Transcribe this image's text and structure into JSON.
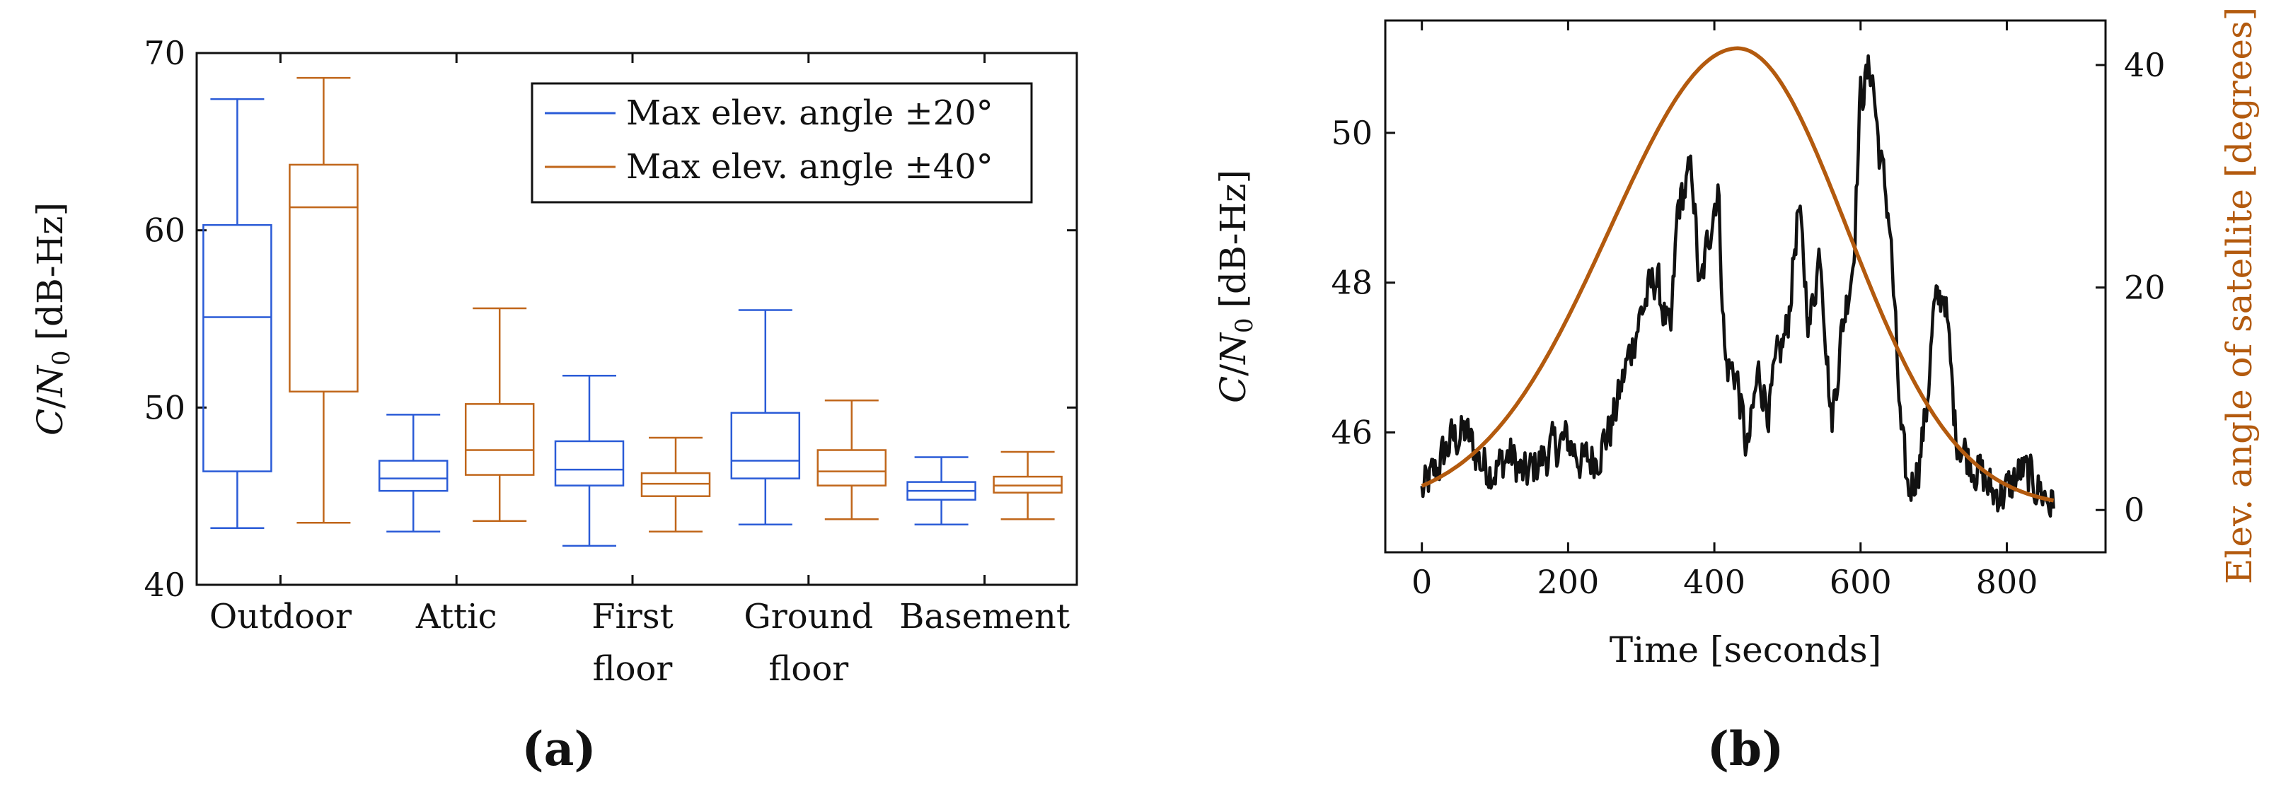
{
  "chart_data": [
    {
      "panel": "(a)",
      "type": "box",
      "ylabel": "C/N₀ [dB-Hz]",
      "ylabel_parts": {
        "c": "C",
        "slash": "/",
        "n": "N",
        "sub": "0",
        "unit": "[dB-Hz]"
      },
      "ylim": [
        40,
        70
      ],
      "yticks": [
        40,
        50,
        60,
        70
      ],
      "categories": [
        "Outdoor",
        "Attic",
        "First floor",
        "Ground floor",
        "Basement"
      ],
      "category_lines": [
        [
          "Outdoor"
        ],
        [
          "Attic"
        ],
        [
          "First",
          "floor"
        ],
        [
          "Ground",
          "floor"
        ],
        [
          "Basement"
        ]
      ],
      "legend_position": "top-right",
      "series": [
        {
          "name": "Max elev. angle ±20°",
          "color": "#2a5bd7",
          "boxes": [
            {
              "min": 43.2,
              "q1": 46.4,
              "median": 55.1,
              "q3": 60.3,
              "max": 67.4
            },
            {
              "min": 43.0,
              "q1": 45.3,
              "median": 46.0,
              "q3": 47.0,
              "max": 49.6
            },
            {
              "min": 42.2,
              "q1": 45.6,
              "median": 46.5,
              "q3": 48.1,
              "max": 51.8
            },
            {
              "min": 43.4,
              "q1": 46.0,
              "median": 47.0,
              "q3": 49.7,
              "max": 55.5
            },
            {
              "min": 43.4,
              "q1": 44.8,
              "median": 45.3,
              "q3": 45.8,
              "max": 47.2
            }
          ]
        },
        {
          "name": "Max elev. angle ±40°",
          "color": "#c0661a",
          "boxes": [
            {
              "min": 43.5,
              "q1": 50.9,
              "median": 61.3,
              "q3": 63.7,
              "max": 68.6
            },
            {
              "min": 43.6,
              "q1": 46.2,
              "median": 47.6,
              "q3": 50.2,
              "max": 55.6
            },
            {
              "min": 43.0,
              "q1": 45.0,
              "median": 45.7,
              "q3": 46.3,
              "max": 48.3
            },
            {
              "min": 43.7,
              "q1": 45.6,
              "median": 46.4,
              "q3": 47.6,
              "max": 50.4
            },
            {
              "min": 43.7,
              "q1": 45.2,
              "median": 45.6,
              "q3": 46.1,
              "max": 47.5
            }
          ]
        }
      ]
    },
    {
      "panel": "(b)",
      "type": "line",
      "xlabel": "Time [seconds]",
      "ylabel": "C/N₀ [dB-Hz]",
      "ylabel_parts": {
        "c": "C",
        "slash": "/",
        "n": "N",
        "sub": "0",
        "unit": "[dB-Hz]"
      },
      "y2label": "Elev. angle of satellite [degrees]",
      "xlim": [
        -50,
        935
      ],
      "ylim": [
        44.4,
        51.5
      ],
      "y2lim": [
        -3.8,
        44
      ],
      "xticks": [
        0,
        200,
        400,
        600,
        800
      ],
      "yticks": [
        46,
        48,
        50
      ],
      "y2ticks": [
        0,
        20,
        40
      ],
      "series": [
        {
          "name": "C/N₀",
          "axis": "left",
          "color": "#111111",
          "x_range": [
            0,
            865
          ],
          "anchors": [
            [
              0,
              45.2
            ],
            [
              20,
              45.5
            ],
            [
              40,
              45.9
            ],
            [
              60,
              46.0
            ],
            [
              80,
              45.6
            ],
            [
              100,
              45.5
            ],
            [
              120,
              45.7
            ],
            [
              140,
              45.4
            ],
            [
              160,
              45.6
            ],
            [
              180,
              45.8
            ],
            [
              200,
              45.9
            ],
            [
              220,
              45.6
            ],
            [
              240,
              45.7
            ],
            [
              260,
              46.1
            ],
            [
              280,
              46.9
            ],
            [
              300,
              47.6
            ],
            [
              320,
              48.1
            ],
            [
              340,
              47.2
            ],
            [
              350,
              49.0
            ],
            [
              370,
              49.5
            ],
            [
              380,
              47.8
            ],
            [
              395,
              48.8
            ],
            [
              405,
              49.3
            ],
            [
              415,
              46.9
            ],
            [
              430,
              46.8
            ],
            [
              445,
              45.7
            ],
            [
              460,
              46.8
            ],
            [
              475,
              46.3
            ],
            [
              485,
              46.9
            ],
            [
              500,
              47.4
            ],
            [
              515,
              49.0
            ],
            [
              530,
              47.4
            ],
            [
              545,
              48.5
            ],
            [
              560,
              46.1
            ],
            [
              575,
              47.4
            ],
            [
              590,
              48.3
            ],
            [
              600,
              50.5
            ],
            [
              615,
              50.9
            ],
            [
              625,
              49.8
            ],
            [
              640,
              48.8
            ],
            [
              655,
              46.0
            ],
            [
              665,
              45.2
            ],
            [
              680,
              45.6
            ],
            [
              690,
              46.3
            ],
            [
              700,
              47.6
            ],
            [
              715,
              47.9
            ],
            [
              730,
              46.0
            ],
            [
              745,
              45.7
            ],
            [
              760,
              45.5
            ],
            [
              780,
              45.2
            ],
            [
              800,
              45.2
            ],
            [
              820,
              45.5
            ],
            [
              840,
              45.3
            ],
            [
              865,
              45.0
            ]
          ],
          "noise_sd": 0.22
        },
        {
          "name": "Elev. angle of satellite",
          "axis": "right",
          "color": "#b35a0e",
          "x_range": [
            0,
            865
          ],
          "peak_time": 432,
          "peak_degrees": 41.5,
          "start_degrees": 0.2
        }
      ]
    }
  ],
  "captions": [
    "(a)",
    "(b)"
  ],
  "colors": {
    "blue": "#2a5bd7",
    "orange": "#c0661a",
    "curve": "#b35a0e",
    "black": "#111111"
  }
}
